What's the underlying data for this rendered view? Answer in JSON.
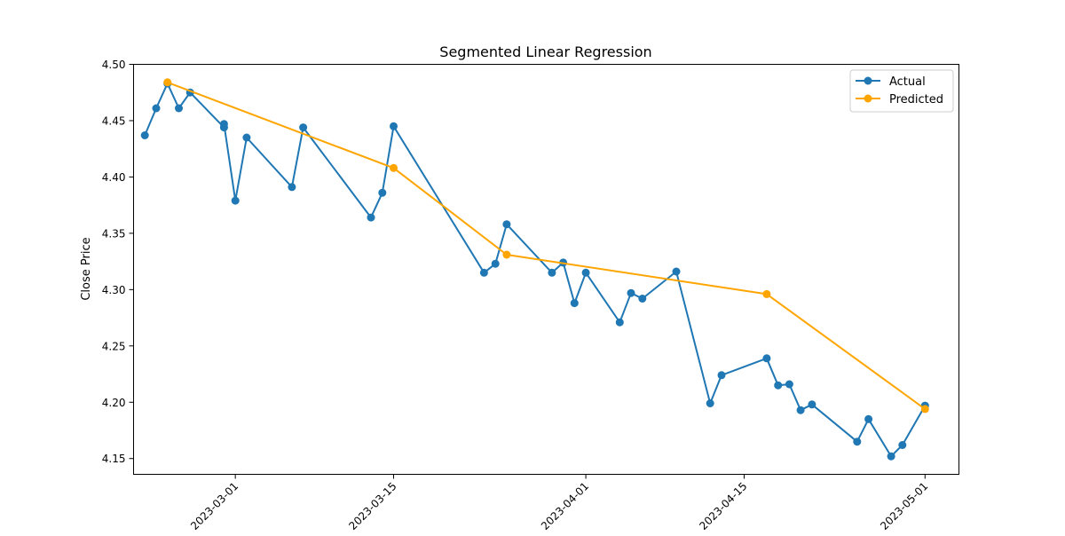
{
  "chart_data": {
    "type": "line",
    "title": "Segmented Linear Regression",
    "xlabel": "",
    "ylabel": "Close Price",
    "xlim": [
      "2023-02-20",
      "2023-05-04"
    ],
    "ylim": [
      4.136,
      4.5
    ],
    "x_ticks": [
      "2023-03-01",
      "2023-03-15",
      "2023-04-01",
      "2023-04-15",
      "2023-05-01"
    ],
    "y_ticks": [
      4.15,
      4.2,
      4.25,
      4.3,
      4.35,
      4.4,
      4.45,
      4.5
    ],
    "grid": false,
    "legend": {
      "position": "top-right"
    },
    "series": [
      {
        "name": "Actual",
        "color": "#1f77b4",
        "marker": "circle",
        "points": [
          [
            "2023-02-21",
            4.437
          ],
          [
            "2023-02-22",
            4.461
          ],
          [
            "2023-02-23",
            4.483
          ],
          [
            "2023-02-24",
            4.461
          ],
          [
            "2023-02-25",
            4.475
          ],
          [
            "2023-02-28",
            4.444
          ],
          [
            "2023-02-28",
            4.447
          ],
          [
            "2023-03-01",
            4.379
          ],
          [
            "2023-03-02",
            4.435
          ],
          [
            "2023-03-06",
            4.391
          ],
          [
            "2023-03-07",
            4.444
          ],
          [
            "2023-03-13",
            4.364
          ],
          [
            "2023-03-14",
            4.386
          ],
          [
            "2023-03-15",
            4.445
          ],
          [
            "2023-03-23",
            4.315
          ],
          [
            "2023-03-24",
            4.323
          ],
          [
            "2023-03-25",
            4.358
          ],
          [
            "2023-03-29",
            4.315
          ],
          [
            "2023-03-30",
            4.324
          ],
          [
            "2023-03-31",
            4.288
          ],
          [
            "2023-04-01",
            4.315
          ],
          [
            "2023-04-04",
            4.271
          ],
          [
            "2023-04-05",
            4.297
          ],
          [
            "2023-04-06",
            4.292
          ],
          [
            "2023-04-09",
            4.316
          ],
          [
            "2023-04-12",
            4.199
          ],
          [
            "2023-04-13",
            4.224
          ],
          [
            "2023-04-17",
            4.239
          ],
          [
            "2023-04-18",
            4.215
          ],
          [
            "2023-04-19",
            4.216
          ],
          [
            "2023-04-20",
            4.193
          ],
          [
            "2023-04-21",
            4.198
          ],
          [
            "2023-04-25",
            4.165
          ],
          [
            "2023-04-26",
            4.185
          ],
          [
            "2023-04-28",
            4.152
          ],
          [
            "2023-04-29",
            4.162
          ],
          [
            "2023-05-01",
            4.197
          ]
        ]
      },
      {
        "name": "Predicted",
        "color": "#ffa500",
        "marker": "circle",
        "points": [
          [
            "2023-02-23",
            4.484
          ],
          [
            "2023-03-15",
            4.408
          ],
          [
            "2023-03-25",
            4.331
          ],
          [
            "2023-04-17",
            4.296
          ],
          [
            "2023-05-01",
            4.194
          ]
        ]
      }
    ]
  }
}
